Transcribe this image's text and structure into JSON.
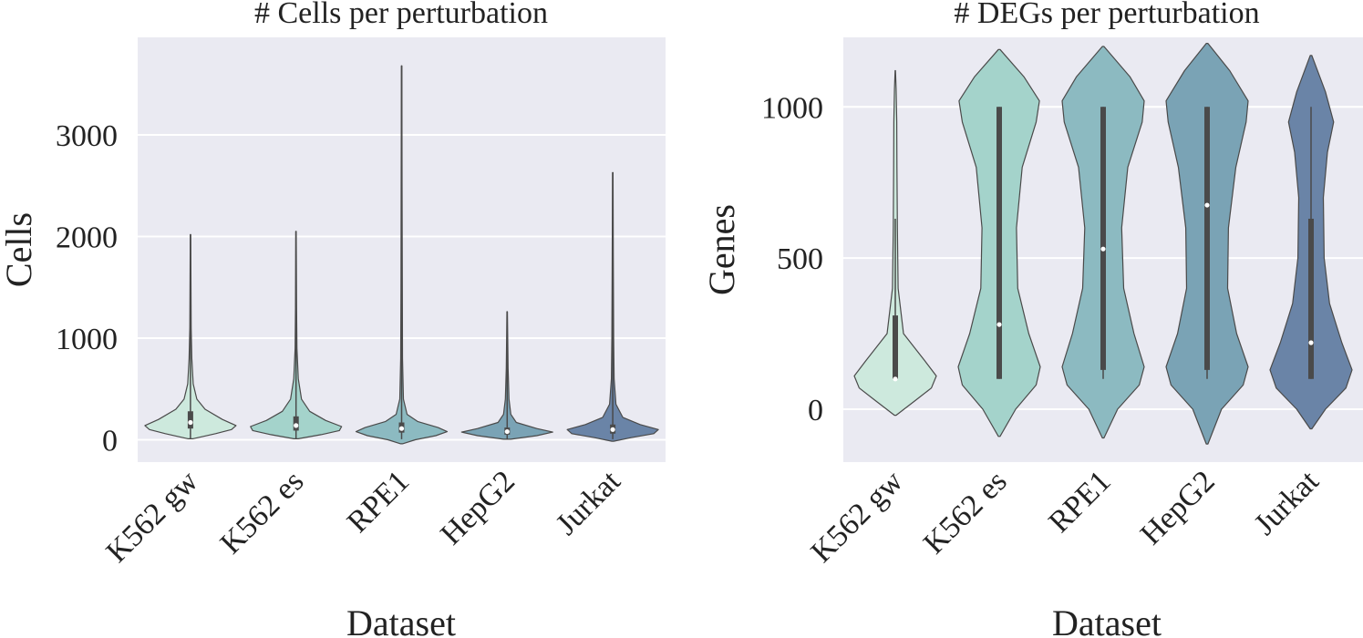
{
  "colors": [
    "#cde9dd",
    "#a4d3cb",
    "#8cbac1",
    "#7aa3b5",
    "#6a84a7"
  ],
  "chart_data": [
    {
      "type": "violin",
      "title": "# Cells per perturbation",
      "xlabel": "Dataset",
      "ylabel": "Cells",
      "ylim": [
        -220,
        3960
      ],
      "yticks": [
        0,
        1000,
        2000,
        3000
      ],
      "grid": true,
      "categories": [
        "K562 gw",
        "K562 es",
        "RPE1",
        "HepG2",
        "Jurkat"
      ],
      "series": [
        {
          "name": "K562 gw",
          "min": 10,
          "q1": 110,
          "median": 170,
          "q3": 280,
          "max": 2020,
          "density": [
            [
              10,
              0.05
            ],
            [
              60,
              0.55
            ],
            [
              100,
              0.9
            ],
            [
              140,
              1.0
            ],
            [
              200,
              0.7
            ],
            [
              300,
              0.32
            ],
            [
              400,
              0.14
            ],
            [
              550,
              0.06
            ],
            [
              800,
              0.03
            ],
            [
              1100,
              0.015
            ],
            [
              2020,
              0.005
            ]
          ]
        },
        {
          "name": "K562 es",
          "min": 10,
          "q1": 90,
          "median": 140,
          "q3": 230,
          "max": 2050,
          "density": [
            [
              10,
              0.05
            ],
            [
              50,
              0.55
            ],
            [
              90,
              0.95
            ],
            [
              130,
              1.0
            ],
            [
              190,
              0.65
            ],
            [
              280,
              0.3
            ],
            [
              400,
              0.12
            ],
            [
              600,
              0.05
            ],
            [
              900,
              0.02
            ],
            [
              1300,
              0.012
            ],
            [
              2050,
              0.005
            ]
          ]
        },
        {
          "name": "RPE1",
          "min": 5,
          "q1": 70,
          "median": 110,
          "q3": 170,
          "max": 3680,
          "density": [
            [
              -40,
              0.02
            ],
            [
              0,
              0.3
            ],
            [
              40,
              0.75
            ],
            [
              80,
              1.0
            ],
            [
              120,
              0.8
            ],
            [
              180,
              0.35
            ],
            [
              250,
              0.12
            ],
            [
              400,
              0.04
            ],
            [
              800,
              0.02
            ],
            [
              1500,
              0.015
            ],
            [
              2500,
              0.01
            ],
            [
              3680,
              0.005
            ]
          ]
        },
        {
          "name": "HepG2",
          "min": 5,
          "q1": 50,
          "median": 80,
          "q3": 120,
          "max": 1260,
          "density": [
            [
              5,
              0.08
            ],
            [
              40,
              0.65
            ],
            [
              75,
              1.0
            ],
            [
              110,
              0.65
            ],
            [
              170,
              0.2
            ],
            [
              250,
              0.08
            ],
            [
              400,
              0.04
            ],
            [
              700,
              0.02
            ],
            [
              1000,
              0.012
            ],
            [
              1260,
              0.005
            ]
          ]
        },
        {
          "name": "Jurkat",
          "min": 5,
          "q1": 60,
          "median": 100,
          "q3": 150,
          "max": 2630,
          "density": [
            [
              -15,
              0.02
            ],
            [
              20,
              0.4
            ],
            [
              60,
              0.9
            ],
            [
              100,
              1.0
            ],
            [
              150,
              0.6
            ],
            [
              220,
              0.22
            ],
            [
              350,
              0.07
            ],
            [
              600,
              0.03
            ],
            [
              1000,
              0.02
            ],
            [
              1800,
              0.012
            ],
            [
              2630,
              0.005
            ]
          ]
        }
      ]
    },
    {
      "type": "violin",
      "title": "# DEGs per perturbation",
      "xlabel": "Dataset",
      "ylabel": "Genes",
      "ylim": [
        -175,
        1230
      ],
      "yticks": [
        0,
        500,
        1000
      ],
      "grid": true,
      "categories": [
        "K562 gw",
        "K562 es",
        "RPE1",
        "HepG2",
        "Jurkat"
      ],
      "series": [
        {
          "name": "K562 gw",
          "min": 100,
          "q1": 100,
          "median": 100,
          "q3": 310,
          "max": 630,
          "density": [
            [
              -20,
              0.02
            ],
            [
              30,
              0.5
            ],
            [
              70,
              0.88
            ],
            [
              110,
              1.0
            ],
            [
              160,
              0.72
            ],
            [
              250,
              0.2
            ],
            [
              400,
              0.07
            ],
            [
              600,
              0.05
            ],
            [
              800,
              0.04
            ],
            [
              950,
              0.035
            ],
            [
              1060,
              0.02
            ],
            [
              1120,
              0.005
            ]
          ]
        },
        {
          "name": "K562 es",
          "min": 100,
          "q1": 100,
          "median": 280,
          "q3": 1000,
          "max": 1000,
          "density": [
            [
              -90,
              0.02
            ],
            [
              0,
              0.4
            ],
            [
              80,
              0.9
            ],
            [
              140,
              1.0
            ],
            [
              250,
              0.72
            ],
            [
              400,
              0.45
            ],
            [
              600,
              0.42
            ],
            [
              800,
              0.56
            ],
            [
              950,
              0.9
            ],
            [
              1020,
              0.98
            ],
            [
              1100,
              0.6
            ],
            [
              1190,
              0.02
            ]
          ]
        },
        {
          "name": "RPE1",
          "min": 100,
          "q1": 130,
          "median": 530,
          "q3": 1000,
          "max": 1000,
          "density": [
            [
              -95,
              0.02
            ],
            [
              0,
              0.35
            ],
            [
              80,
              0.88
            ],
            [
              140,
              1.0
            ],
            [
              250,
              0.75
            ],
            [
              400,
              0.5
            ],
            [
              600,
              0.45
            ],
            [
              800,
              0.6
            ],
            [
              950,
              0.95
            ],
            [
              1020,
              1.0
            ],
            [
              1100,
              0.65
            ],
            [
              1200,
              0.02
            ]
          ]
        },
        {
          "name": "HepG2",
          "min": 100,
          "q1": 130,
          "median": 675,
          "q3": 1000,
          "max": 1000,
          "density": [
            [
              -115,
              0.02
            ],
            [
              0,
              0.35
            ],
            [
              80,
              0.88
            ],
            [
              140,
              1.0
            ],
            [
              250,
              0.72
            ],
            [
              400,
              0.5
            ],
            [
              600,
              0.52
            ],
            [
              800,
              0.7
            ],
            [
              950,
              0.95
            ],
            [
              1020,
              1.0
            ],
            [
              1120,
              0.55
            ],
            [
              1210,
              0.02
            ]
          ]
        },
        {
          "name": "Jurkat",
          "min": 100,
          "q1": 100,
          "median": 220,
          "q3": 630,
          "max": 1000,
          "density": [
            [
              -65,
              0.02
            ],
            [
              0,
              0.35
            ],
            [
              70,
              0.85
            ],
            [
              130,
              1.0
            ],
            [
              220,
              0.75
            ],
            [
              350,
              0.45
            ],
            [
              500,
              0.32
            ],
            [
              700,
              0.3
            ],
            [
              850,
              0.4
            ],
            [
              950,
              0.55
            ],
            [
              1050,
              0.35
            ],
            [
              1170,
              0.02
            ]
          ]
        }
      ]
    }
  ]
}
